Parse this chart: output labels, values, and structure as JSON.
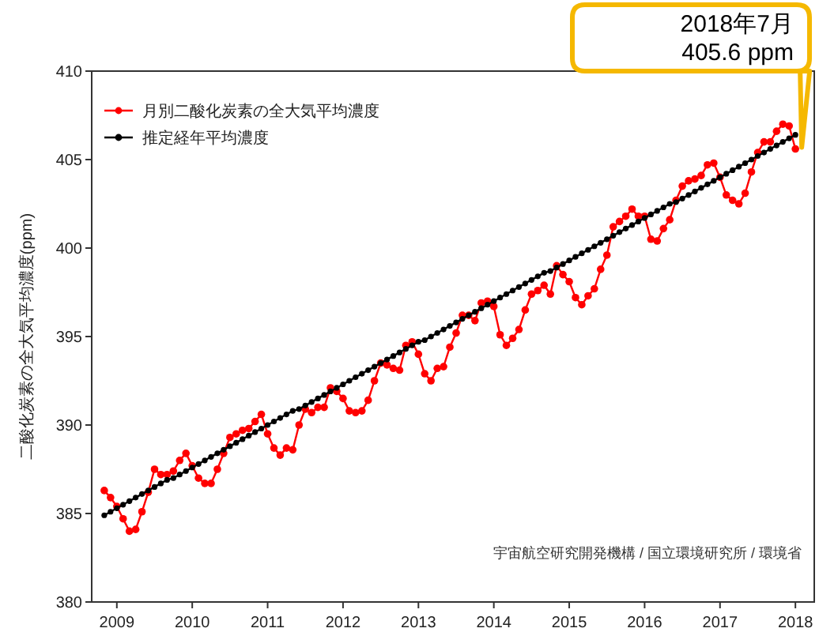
{
  "chart_data": {
    "type": "line",
    "ylabel": "二酸化炭素の全大気平均濃度(ppm)",
    "x": [
      "2009-05",
      "2009-06",
      "2009-07",
      "2009-08",
      "2009-09",
      "2009-10",
      "2009-11",
      "2009-12",
      "2010-01",
      "2010-02",
      "2010-03",
      "2010-04",
      "2010-05",
      "2010-06",
      "2010-07",
      "2010-08",
      "2010-09",
      "2010-10",
      "2010-11",
      "2010-12",
      "2011-01",
      "2011-02",
      "2011-03",
      "2011-04",
      "2011-05",
      "2011-06",
      "2011-07",
      "2011-08",
      "2011-09",
      "2011-10",
      "2011-11",
      "2011-12",
      "2012-01",
      "2012-02",
      "2012-03",
      "2012-04",
      "2012-05",
      "2012-06",
      "2012-07",
      "2012-08",
      "2012-09",
      "2012-10",
      "2012-11",
      "2012-12",
      "2013-01",
      "2013-02",
      "2013-03",
      "2013-04",
      "2013-05",
      "2013-06",
      "2013-07",
      "2013-08",
      "2013-09",
      "2013-10",
      "2013-11",
      "2013-12",
      "2014-01",
      "2014-02",
      "2014-03",
      "2014-04",
      "2014-05",
      "2014-06",
      "2014-07",
      "2014-08",
      "2014-09",
      "2014-10",
      "2014-11",
      "2014-12",
      "2015-01",
      "2015-02",
      "2015-03",
      "2015-04",
      "2015-05",
      "2015-06",
      "2015-07",
      "2015-08",
      "2015-09",
      "2015-10",
      "2015-11",
      "2015-12",
      "2016-01",
      "2016-02",
      "2016-03",
      "2016-04",
      "2016-05",
      "2016-06",
      "2016-07",
      "2016-08",
      "2016-09",
      "2016-10",
      "2016-11",
      "2016-12",
      "2017-01",
      "2017-02",
      "2017-03",
      "2017-04",
      "2017-05",
      "2017-06",
      "2017-07",
      "2017-08",
      "2017-09",
      "2017-10",
      "2017-11",
      "2017-12",
      "2018-01",
      "2018-02",
      "2018-03",
      "2018-04",
      "2018-05",
      "2018-06",
      "2018-07"
    ],
    "series": [
      {
        "name": "月別二酸化炭素の全大気平均濃度",
        "color": "#ff0000",
        "values": [
          386.3,
          385.9,
          385.4,
          384.7,
          384.0,
          384.1,
          385.1,
          386.2,
          387.5,
          387.2,
          387.2,
          387.4,
          388.0,
          388.4,
          387.7,
          387.0,
          386.7,
          386.7,
          387.5,
          388.4,
          389.3,
          389.5,
          389.7,
          389.8,
          390.2,
          390.6,
          389.5,
          388.7,
          388.3,
          388.7,
          388.6,
          390.0,
          390.9,
          390.7,
          391.0,
          391.0,
          392.1,
          391.9,
          391.5,
          390.8,
          390.7,
          390.8,
          391.4,
          392.5,
          393.5,
          393.4,
          393.2,
          393.1,
          394.5,
          394.7,
          394.0,
          392.9,
          392.5,
          393.2,
          393.3,
          394.4,
          395.2,
          396.2,
          396.2,
          395.9,
          396.9,
          397.0,
          396.7,
          395.1,
          394.5,
          394.9,
          395.4,
          396.5,
          397.4,
          397.6,
          397.9,
          397.4,
          399.0,
          398.5,
          398.1,
          397.2,
          396.8,
          397.3,
          397.7,
          398.8,
          399.6,
          401.2,
          401.5,
          401.8,
          402.2,
          401.8,
          401.8,
          400.5,
          400.4,
          401.1,
          401.6,
          402.7,
          403.5,
          403.8,
          403.9,
          404.1,
          404.7,
          404.8,
          404.0,
          403.0,
          402.7,
          402.5,
          403.1,
          404.3,
          405.4,
          406.0,
          406.0,
          406.6,
          407.0,
          406.9,
          405.6
        ]
      },
      {
        "name": "推定経年平均濃度",
        "color": "#000000",
        "values": [
          384.9,
          385.1,
          385.3,
          385.5,
          385.7,
          385.9,
          386.1,
          386.3,
          386.5,
          386.7,
          386.9,
          387.0,
          387.2,
          387.4,
          387.6,
          387.8,
          388.0,
          388.2,
          388.4,
          388.6,
          388.8,
          389.0,
          389.2,
          389.4,
          389.6,
          389.8,
          390.0,
          390.2,
          390.4,
          390.6,
          390.8,
          390.9,
          391.1,
          391.3,
          391.5,
          391.7,
          391.9,
          392.1,
          392.3,
          392.5,
          392.7,
          392.9,
          393.1,
          393.3,
          393.5,
          393.7,
          393.9,
          394.1,
          394.3,
          394.5,
          394.7,
          394.8,
          395.0,
          395.2,
          395.4,
          395.6,
          395.8,
          396.0,
          396.2,
          396.4,
          396.6,
          396.8,
          397.0,
          397.2,
          397.4,
          397.6,
          397.8,
          398.0,
          398.2,
          398.4,
          398.6,
          398.7,
          398.9,
          399.1,
          399.3,
          399.5,
          399.7,
          399.9,
          400.1,
          400.3,
          400.5,
          400.7,
          400.9,
          401.1,
          401.3,
          401.5,
          401.7,
          401.9,
          402.1,
          402.3,
          402.5,
          402.6,
          402.8,
          403.0,
          403.2,
          403.4,
          403.6,
          403.8,
          404.0,
          404.2,
          404.4,
          404.6,
          404.8,
          405.0,
          405.2,
          405.4,
          405.6,
          405.8,
          406.0,
          406.2,
          406.4
        ]
      }
    ],
    "xlim": [
      "2009-03",
      "2018-10"
    ],
    "xticks": [
      {
        "value": "2009-07",
        "label": "2009"
      },
      {
        "value": "2010-07",
        "label": "2010"
      },
      {
        "value": "2011-07",
        "label": "2011"
      },
      {
        "value": "2012-07",
        "label": "2012"
      },
      {
        "value": "2013-07",
        "label": "2013"
      },
      {
        "value": "2014-07",
        "label": "2014"
      },
      {
        "value": "2015-07",
        "label": "2015"
      },
      {
        "value": "2016-07",
        "label": "2016"
      },
      {
        "value": "2017-07",
        "label": "2017"
      },
      {
        "value": "2018-07",
        "label": "2018"
      }
    ],
    "ylim": [
      380,
      410
    ],
    "yticks": [
      380,
      385,
      390,
      395,
      400,
      405,
      410
    ],
    "grid": false,
    "legend": "top left",
    "marker": "circle",
    "line_style": "solid",
    "annotations": [
      "2018年7月\n405.6 ppm",
      "宇宙航空研究開発機構 / 国立環境研究所 / 環境省"
    ]
  }
}
